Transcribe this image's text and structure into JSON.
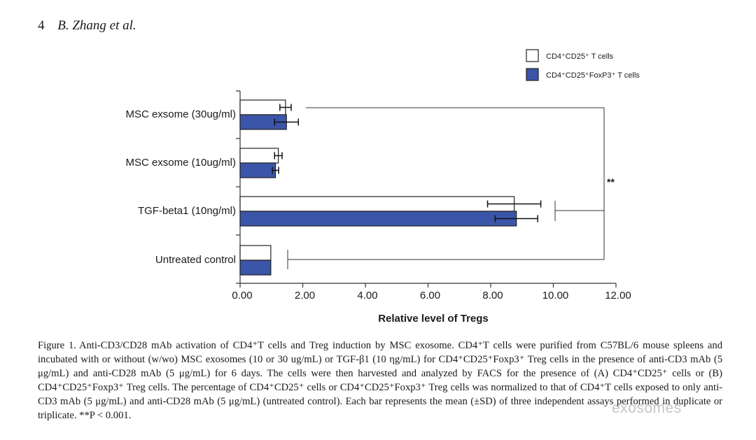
{
  "header": {
    "page_number": "4",
    "authors": "B. Zhang et al."
  },
  "chart_data": {
    "type": "bar",
    "orientation": "horizontal",
    "categories": [
      "MSC exsome (30ug/ml)",
      "MSC exsome (10ug/ml)",
      "TGF-beta1 (10ng/ml)",
      "Untreated control"
    ],
    "series": [
      {
        "name": "CD4⁺CD25⁺ T cells",
        "color": "#ffffff",
        "values": [
          1.45,
          1.22,
          8.75,
          0.98
        ],
        "errors": [
          0.18,
          0.12,
          0.85,
          0
        ]
      },
      {
        "name": "CD4⁺CD25⁺FoxP3⁺ T cells",
        "color": "#3b55a8",
        "values": [
          1.48,
          1.13,
          8.82,
          0.98
        ],
        "errors": [
          0.38,
          0.1,
          0.68,
          0
        ]
      }
    ],
    "xlabel": "Relative level of Tregs",
    "xlim": [
      0,
      12
    ],
    "xticks": [
      "0.00",
      "2.00",
      "4.00",
      "6.00",
      "8.00",
      "10.00",
      "12.00"
    ],
    "grid": false,
    "legend_position": "top-right",
    "annotation": "**"
  },
  "caption": {
    "lead": "Figure 1.",
    "text": "Anti-CD3/CD28 mAb activation of CD4⁺T cells and Treg induction by MSC exosome. CD4⁺T cells were purified from C57BL/6 mouse spleens and incubated with or without (w/wo) MSC exosomes (10 or 30 ug/mL) or TGF-β1 (10 ηg/mL) for CD4⁺CD25⁺Foxp3⁺ Treg cells in the presence of anti-CD3 mAb (5 μg/mL) and anti-CD28 mAb (5 μg/mL) for 6 days. The cells were then harvested and analyzed by FACS for the presence of (A) CD4⁺CD25⁺ cells or (B) CD4⁺CD25⁺Foxp3⁺ Treg cells. The percentage of CD4⁺CD25⁺ cells or CD4⁺CD25⁺Foxp3⁺ Treg cells was normalized to that of CD4⁺T cells exposed to only anti-CD3 mAb (5 μg/mL) and anti-CD28 mAb (5 μg/mL) (untreated control). Each bar represents the mean (±SD) of three independent assays performed in duplicate or triplicate. **P < 0.001."
  },
  "watermark": "exosomes"
}
